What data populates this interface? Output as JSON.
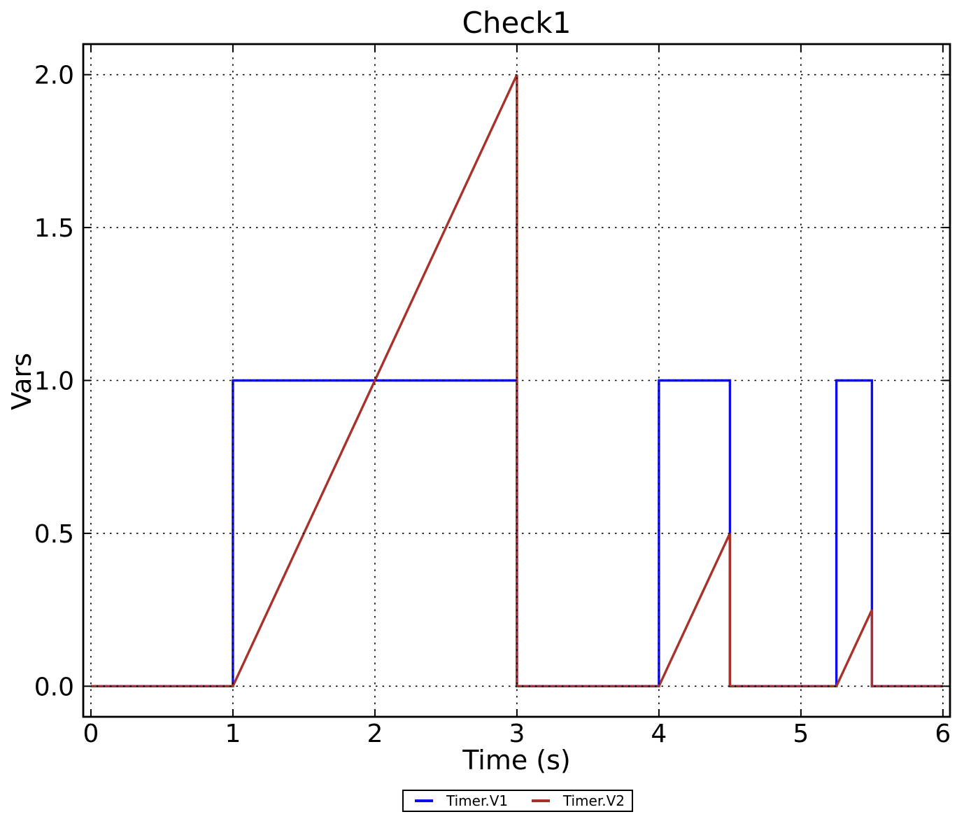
{
  "figure": {
    "title": "Check1",
    "xlabel": "Time (s)",
    "ylabel": "Vars"
  },
  "chart_data": {
    "type": "line",
    "title": "Check1",
    "xlabel": "Time (s)",
    "ylabel": "Vars",
    "xlim": [
      -0.054,
      6.05
    ],
    "ylim": [
      -0.1,
      2.1
    ],
    "grid": true,
    "grid_style": "dotted",
    "legend_position": "bottom-outside-center",
    "xticks": {
      "values": [
        0,
        1,
        2,
        3,
        4,
        5,
        6
      ],
      "labels": [
        "0",
        "1",
        "2",
        "3",
        "4",
        "5",
        "6"
      ]
    },
    "yticks": {
      "values": [
        0,
        0.5,
        1,
        1.5,
        2
      ],
      "labels": [
        "0.0",
        "0.5",
        "1.0",
        "1.5",
        "2.0"
      ]
    },
    "series": [
      {
        "name": "Timer.V1",
        "color": "#0d0df0",
        "points": [
          [
            0,
            0
          ],
          [
            1,
            0
          ],
          [
            1,
            1
          ],
          [
            3,
            1
          ],
          [
            3,
            0
          ],
          [
            4,
            0
          ],
          [
            4,
            1
          ],
          [
            4.5,
            1
          ],
          [
            4.5,
            0
          ],
          [
            5.25,
            0
          ],
          [
            5.25,
            1
          ],
          [
            5.5,
            1
          ],
          [
            5.5,
            0
          ],
          [
            6,
            0
          ]
        ]
      },
      {
        "name": "Timer.V2",
        "color": "#a8322a",
        "points": [
          [
            0,
            0
          ],
          [
            1,
            0
          ],
          [
            3,
            2
          ],
          [
            3,
            0
          ],
          [
            4,
            0
          ],
          [
            4.5,
            0.5
          ],
          [
            4.5,
            0
          ],
          [
            5.25,
            0
          ],
          [
            5.5,
            0.25
          ],
          [
            5.5,
            0
          ],
          [
            6,
            0
          ]
        ]
      }
    ]
  },
  "legend": {
    "items": [
      {
        "label": "Timer.V1",
        "color": "#0d0df0"
      },
      {
        "label": "Timer.V2",
        "color": "#a8322a"
      }
    ]
  },
  "colors": {
    "background": "#ffffff",
    "axis": "#000000",
    "grid": "#000000",
    "series_v1": "#0d0df0",
    "series_v2": "#a8322a"
  }
}
